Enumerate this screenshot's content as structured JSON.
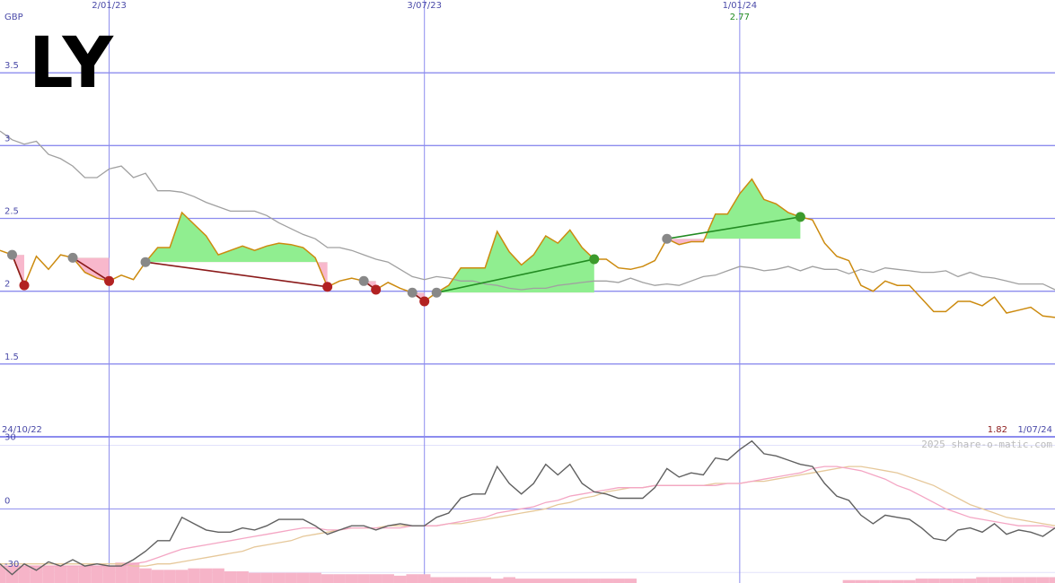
{
  "chart_data": [
    {
      "type": "line",
      "title": "LY",
      "y_label": "GBP",
      "start_label": "24/10/22",
      "end_label": "1/07/24",
      "high_value": 2.77,
      "high_color": "#228b22",
      "last_value": 1.82,
      "last_color": "#8b1a1a",
      "credit": "2025 share-o-matic.com",
      "ylim": [
        1,
        4
      ],
      "yticks": [
        3.5,
        3,
        2.5,
        2,
        1.5
      ],
      "grid": true,
      "grid_color": "#8c8cee",
      "gain_color": "#90ee90",
      "loss_color": "#f8b8cc",
      "entry_color": "#888888",
      "win_line_color": "#228b22",
      "loss_line_color": "#8b1a1a",
      "win_marker_color": "#3c9a2c",
      "loss_marker_color": "#b22222",
      "categories": [
        null,
        null,
        null,
        null,
        null,
        null,
        null,
        null,
        null,
        "2/01/23",
        null,
        null,
        null,
        null,
        null,
        null,
        null,
        null,
        null,
        null,
        null,
        null,
        null,
        null,
        null,
        null,
        null,
        null,
        null,
        null,
        null,
        null,
        null,
        null,
        null,
        "3/07/23",
        null,
        null,
        null,
        null,
        null,
        null,
        null,
        null,
        null,
        null,
        null,
        null,
        null,
        null,
        null,
        null,
        null,
        null,
        null,
        null,
        null,
        null,
        null,
        null,
        null,
        "1/01/24",
        null,
        null,
        null,
        null,
        null,
        null,
        null,
        null,
        null,
        null,
        null,
        null,
        null,
        null,
        null,
        null,
        null,
        null,
        null,
        null,
        null,
        null,
        null,
        null,
        null,
        null
      ],
      "series": [
        {
          "role": "average",
          "color": "#a0a0a0",
          "values": [
            3.1,
            3.04,
            3.01,
            3.03,
            2.94,
            2.91,
            2.86,
            2.78,
            2.78,
            2.84,
            2.86,
            2.78,
            2.81,
            2.69,
            2.69,
            2.68,
            2.65,
            2.61,
            2.58,
            2.55,
            2.55,
            2.55,
            2.52,
            2.47,
            2.43,
            2.39,
            2.36,
            2.3,
            2.3,
            2.28,
            2.25,
            2.22,
            2.2,
            2.15,
            2.1,
            2.08,
            2.1,
            2.09,
            2.07,
            2.07,
            2.05,
            2.04,
            2.02,
            2.01,
            2.02,
            2.02,
            2.04,
            2.05,
            2.06,
            2.07,
            2.07,
            2.06,
            2.09,
            2.06,
            2.04,
            2.05,
            2.04,
            2.07,
            2.1,
            2.11,
            2.14,
            2.17,
            2.16,
            2.14,
            2.15,
            2.17,
            2.14,
            2.17,
            2.15,
            2.15,
            2.12,
            2.15,
            2.13,
            2.16,
            2.15,
            2.14,
            2.13,
            2.13,
            2.14,
            2.1,
            2.13,
            2.1,
            2.09,
            2.07,
            2.05,
            2.05,
            2.05,
            2.01
          ]
        },
        {
          "role": "price",
          "color": "#cc8a0e",
          "values": [
            2.28,
            2.25,
            2.04,
            2.24,
            2.15,
            2.25,
            2.23,
            2.13,
            2.09,
            2.07,
            2.11,
            2.08,
            2.2,
            2.3,
            2.3,
            2.54,
            2.46,
            2.38,
            2.25,
            2.28,
            2.31,
            2.28,
            2.31,
            2.33,
            2.32,
            2.3,
            2.23,
            2.03,
            2.07,
            2.09,
            2.07,
            2.01,
            2.06,
            2.02,
            1.99,
            1.93,
            1.99,
            2.04,
            2.16,
            2.16,
            2.16,
            2.41,
            2.27,
            2.18,
            2.25,
            2.38,
            2.33,
            2.42,
            2.3,
            2.22,
            2.22,
            2.16,
            2.15,
            2.17,
            2.21,
            2.36,
            2.32,
            2.34,
            2.34,
            2.53,
            2.53,
            2.67,
            2.77,
            2.63,
            2.6,
            2.54,
            2.51,
            2.49,
            2.33,
            2.24,
            2.21,
            2.04,
            2.0,
            2.07,
            2.04,
            2.04,
            1.95,
            1.86,
            1.86,
            1.93,
            1.93,
            1.9,
            1.96,
            1.85,
            1.87,
            1.89,
            1.83,
            1.82
          ]
        }
      ],
      "entries": [
        null,
        2.25,
        null,
        null,
        null,
        null,
        2.23,
        null,
        null,
        null,
        null,
        null,
        2.2,
        null,
        null,
        null,
        null,
        null,
        null,
        null,
        null,
        null,
        null,
        null,
        null,
        null,
        null,
        null,
        null,
        null,
        2.07,
        null,
        null,
        null,
        1.99,
        null,
        1.99,
        null,
        null,
        null,
        null,
        null,
        null,
        null,
        null,
        null,
        null,
        null,
        null,
        null,
        null,
        null,
        null,
        null,
        null,
        2.36,
        null,
        null,
        null,
        null,
        null,
        null,
        null,
        null,
        null,
        null,
        null,
        null,
        null,
        null,
        null,
        null,
        null,
        null,
        null,
        null,
        null,
        null,
        null,
        null,
        null,
        null,
        null,
        null,
        null,
        null,
        null,
        null
      ],
      "exits": [
        null,
        null,
        2.04,
        null,
        null,
        null,
        null,
        null,
        null,
        2.07,
        null,
        null,
        null,
        null,
        null,
        null,
        null,
        null,
        null,
        null,
        null,
        null,
        null,
        null,
        null,
        null,
        null,
        2.03,
        null,
        null,
        null,
        2.01,
        null,
        null,
        null,
        1.93,
        null,
        null,
        null,
        null,
        null,
        null,
        null,
        null,
        null,
        null,
        null,
        null,
        null,
        2.22,
        null,
        null,
        null,
        null,
        null,
        null,
        null,
        null,
        null,
        null,
        null,
        null,
        null,
        null,
        null,
        null,
        2.51,
        null,
        null,
        null,
        null,
        null,
        null,
        null,
        null,
        null,
        null,
        null,
        null,
        null,
        null,
        null,
        null,
        null,
        null,
        null,
        null,
        null
      ]
    },
    {
      "type": "line",
      "ylim": [
        -35,
        34
      ],
      "yticks": [
        30,
        0,
        -30
      ],
      "y2lim": [
        0,
        100
      ],
      "grid": true,
      "series": [
        {
          "type": "bar",
          "axis": "y2",
          "color": "#f6b4c8",
          "values": [
            12,
            12,
            12,
            12,
            12,
            12,
            12,
            12,
            12,
            12,
            14,
            14,
            10,
            9,
            9,
            9,
            10,
            10,
            10,
            8,
            8,
            7,
            7,
            7,
            7,
            7,
            7,
            6,
            6,
            6,
            6,
            6,
            6,
            5,
            6,
            6,
            4,
            4,
            4,
            4,
            4,
            3,
            4,
            3,
            3,
            3,
            3,
            3,
            3,
            3,
            3,
            3,
            3,
            0,
            0,
            0,
            0,
            0,
            0,
            0,
            0,
            0,
            0,
            0,
            0,
            0,
            0,
            0,
            0,
            0,
            2,
            2,
            2,
            2,
            2,
            2,
            3,
            3,
            3,
            3,
            3,
            4,
            4,
            4,
            4,
            4,
            4,
            4
          ]
        },
        {
          "color": "#e6c89a",
          "values": [
            -26,
            -26,
            -26,
            -26,
            -26,
            -26,
            -26,
            -26,
            -26,
            -26,
            -26,
            -27,
            -27,
            -26,
            -26,
            -25,
            -24,
            -23,
            -22,
            -21,
            -20,
            -18,
            -17,
            -16,
            -15,
            -13,
            -12,
            -11,
            -10,
            -9,
            -9,
            -9,
            -8,
            -8,
            -8,
            -8,
            -8,
            -7,
            -7,
            -6,
            -5,
            -4,
            -3,
            -2,
            -1,
            0,
            2,
            3,
            5,
            6,
            8,
            9,
            10,
            10,
            11,
            11,
            11,
            11,
            11,
            12,
            12,
            12,
            13,
            13,
            14,
            15,
            16,
            17,
            18,
            19,
            20,
            20,
            19,
            18,
            17,
            15,
            13,
            11,
            8,
            5,
            2,
            0,
            -2,
            -4,
            -5,
            -6,
            -7,
            -8
          ]
        },
        {
          "color": "#f4a6c4",
          "values": [
            -27,
            -27,
            -27,
            -27,
            -27,
            -27,
            -27,
            -27,
            -27,
            -27,
            -27,
            -26,
            -25,
            -23,
            -21,
            -19,
            -18,
            -17,
            -16,
            -15,
            -14,
            -13,
            -12,
            -11,
            -10,
            -9,
            -9,
            -10,
            -10,
            -9,
            -9,
            -9,
            -9,
            -9,
            -8,
            -8,
            -8,
            -7,
            -6,
            -5,
            -4,
            -2,
            -1,
            0,
            1,
            3,
            4,
            6,
            7,
            8,
            9,
            10,
            10,
            10,
            11,
            11,
            11,
            11,
            11,
            11,
            12,
            12,
            13,
            14,
            15,
            16,
            17,
            19,
            20,
            20,
            19,
            18,
            16,
            14,
            11,
            9,
            6,
            3,
            0,
            -2,
            -4,
            -5,
            -6,
            -7,
            -8,
            -8,
            -8,
            -9
          ]
        },
        {
          "color": "#606060",
          "values": [
            -26,
            -31,
            -26,
            -29,
            -25,
            -27,
            -24,
            -27,
            -26,
            -27,
            -27,
            -24,
            -20,
            -15,
            -15,
            -4,
            -7,
            -10,
            -11,
            -11,
            -9,
            -10,
            -8,
            -5,
            -5,
            -5,
            -8,
            -12,
            -10,
            -8,
            -8,
            -10,
            -8,
            -7,
            -8,
            -8,
            -4,
            -2,
            5,
            7,
            7,
            20,
            12,
            7,
            12,
            21,
            16,
            21,
            12,
            8,
            7,
            5,
            5,
            5,
            10,
            19,
            15,
            17,
            16,
            24,
            23,
            28,
            32,
            26,
            25,
            23,
            21,
            20,
            12,
            6,
            4,
            -3,
            -7,
            -3,
            -4,
            -5,
            -9,
            -14,
            -15,
            -10,
            -9,
            -11,
            -7,
            -12,
            -10,
            -11,
            -13,
            -9
          ]
        }
      ]
    }
  ]
}
